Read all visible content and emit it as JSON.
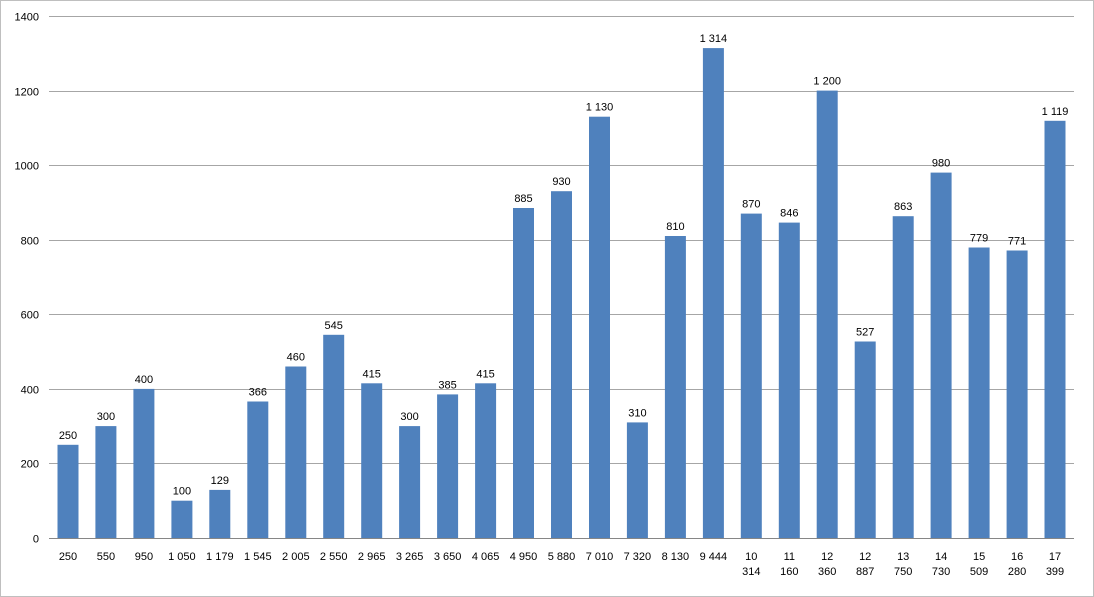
{
  "chart_data": {
    "type": "bar",
    "title": "",
    "xlabel": "",
    "ylabel": "",
    "ylim": [
      0,
      1400
    ],
    "yticks": [
      0,
      200,
      400,
      600,
      800,
      1000,
      1200,
      1400
    ],
    "grid": true,
    "legend": "none",
    "bar_color": "#4f81bd",
    "grid_color": "#a6a6a6",
    "categories": [
      [
        "250"
      ],
      [
        "550"
      ],
      [
        "950"
      ],
      [
        "1 050"
      ],
      [
        "1 179"
      ],
      [
        "1 545"
      ],
      [
        "2 005"
      ],
      [
        "2 550"
      ],
      [
        "2 965"
      ],
      [
        "3 265"
      ],
      [
        "3 650"
      ],
      [
        "4 065"
      ],
      [
        "4 950"
      ],
      [
        "5 880"
      ],
      [
        "7 010"
      ],
      [
        "7 320"
      ],
      [
        "8 130"
      ],
      [
        "9 444"
      ],
      [
        "10",
        "314"
      ],
      [
        "11",
        "160"
      ],
      [
        "12",
        "360"
      ],
      [
        "12",
        "887"
      ],
      [
        "13",
        "750"
      ],
      [
        "14",
        "730"
      ],
      [
        "15",
        "509"
      ],
      [
        "16",
        "280"
      ],
      [
        "17",
        "399"
      ]
    ],
    "values": [
      250,
      300,
      400,
      100,
      129,
      366,
      460,
      545,
      415,
      300,
      385,
      415,
      885,
      930,
      1130,
      310,
      810,
      1314,
      870,
      846,
      1200,
      527,
      863,
      980,
      779,
      771,
      1119
    ],
    "data_labels": [
      "250",
      "300",
      "400",
      "100",
      "129",
      "366",
      "460",
      "545",
      "415",
      "300",
      "385",
      "415",
      "885",
      "930",
      "1 130",
      "310",
      "810",
      "1 314",
      "870",
      "846",
      "1 200",
      "527",
      "863",
      "980",
      "779",
      "771",
      "1 119"
    ]
  }
}
